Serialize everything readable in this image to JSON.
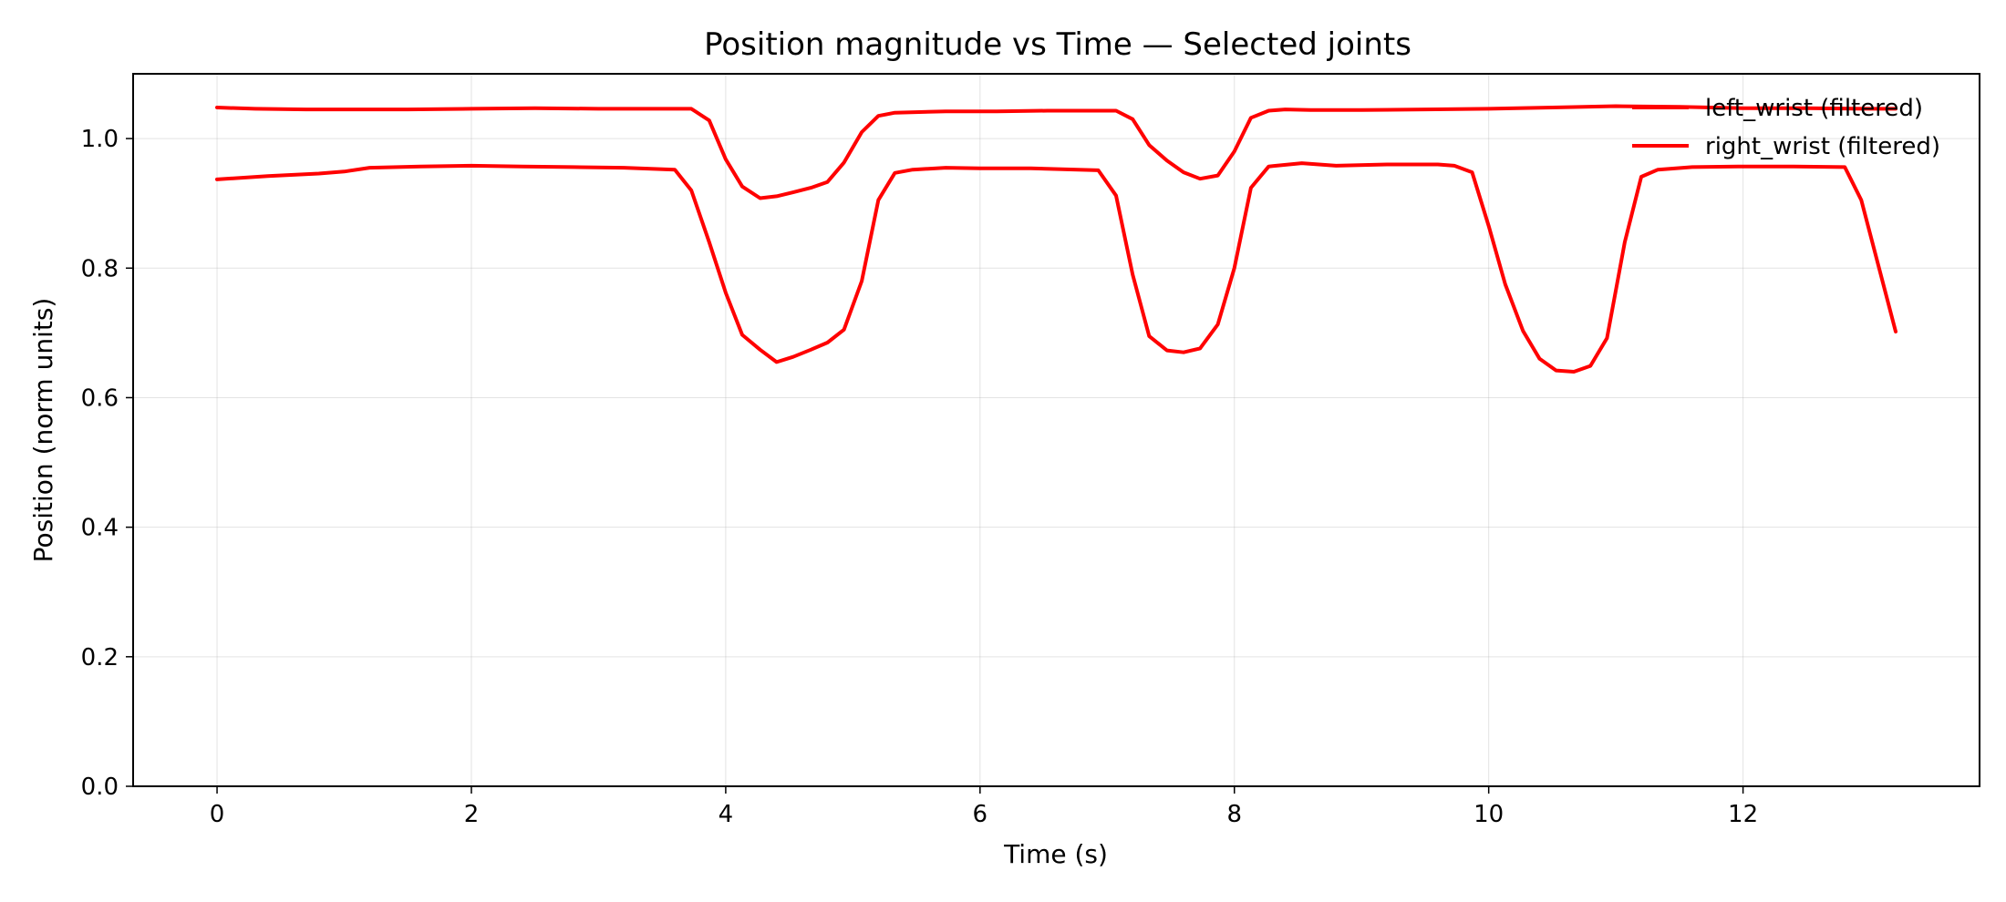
{
  "chart_data": {
    "type": "line",
    "title": "Position magnitude vs Time — Selected joints",
    "xlabel": "Time (s)",
    "ylabel": "Position (norm units)",
    "xlim": [
      -0.66,
      13.86
    ],
    "ylim": [
      0.0,
      1.1
    ],
    "xticks": [
      0,
      2,
      4,
      6,
      8,
      10,
      12
    ],
    "yticks": [
      0.0,
      0.2,
      0.4,
      0.6,
      0.8,
      1.0
    ],
    "xtick_labels": [
      "0",
      "2",
      "4",
      "6",
      "8",
      "10",
      "12"
    ],
    "ytick_labels": [
      "0.0",
      "0.2",
      "0.4",
      "0.6",
      "0.8",
      "1.0"
    ],
    "grid": true,
    "legend": "top-right",
    "series": [
      {
        "name": "left_wrist (filtered)",
        "color": "#ff0000",
        "x": [
          0,
          0.3,
          0.7,
          1.2,
          1.5,
          2.0,
          2.5,
          3.0,
          3.5,
          3.73,
          3.87,
          4.0,
          4.13,
          4.27,
          4.4,
          4.53,
          4.67,
          4.8,
          4.93,
          5.07,
          5.2,
          5.33,
          5.73,
          6.13,
          6.53,
          7.07,
          7.2,
          7.33,
          7.47,
          7.6,
          7.73,
          7.87,
          8.0,
          8.13,
          8.27,
          8.4,
          8.6,
          9.0,
          9.5,
          10.0,
          10.5,
          11.0,
          11.5,
          12.0,
          12.5,
          13.0,
          13.2
        ],
        "values": [
          1.048,
          1.046,
          1.045,
          1.045,
          1.045,
          1.046,
          1.047,
          1.046,
          1.046,
          1.046,
          1.028,
          0.968,
          0.926,
          0.908,
          0.911,
          0.917,
          0.924,
          0.933,
          0.963,
          1.01,
          1.035,
          1.04,
          1.042,
          1.042,
          1.043,
          1.043,
          1.03,
          0.99,
          0.966,
          0.948,
          0.938,
          0.943,
          0.98,
          1.032,
          1.043,
          1.045,
          1.044,
          1.044,
          1.045,
          1.046,
          1.048,
          1.05,
          1.049,
          1.047,
          1.047,
          1.046,
          1.046
        ]
      },
      {
        "name": "right_wrist (filtered)",
        "color": "#ff0000",
        "x": [
          0,
          0.4,
          0.8,
          1.0,
          1.2,
          1.6,
          2.0,
          2.4,
          2.8,
          3.2,
          3.6,
          3.73,
          3.87,
          4.0,
          4.13,
          4.27,
          4.4,
          4.53,
          4.67,
          4.8,
          4.93,
          5.07,
          5.2,
          5.33,
          5.47,
          5.73,
          6.0,
          6.4,
          6.93,
          7.07,
          7.2,
          7.33,
          7.47,
          7.6,
          7.73,
          7.87,
          8.0,
          8.13,
          8.27,
          8.53,
          8.8,
          9.2,
          9.6,
          9.73,
          9.87,
          10.0,
          10.13,
          10.27,
          10.4,
          10.53,
          10.67,
          10.8,
          10.93,
          11.07,
          11.2,
          11.33,
          11.6,
          12.0,
          12.4,
          12.8,
          12.93,
          13.07,
          13.2
        ],
        "values": [
          0.937,
          0.942,
          0.946,
          0.949,
          0.955,
          0.957,
          0.958,
          0.957,
          0.956,
          0.955,
          0.952,
          0.92,
          0.84,
          0.762,
          0.697,
          0.674,
          0.655,
          0.663,
          0.674,
          0.685,
          0.705,
          0.78,
          0.905,
          0.947,
          0.952,
          0.955,
          0.954,
          0.954,
          0.951,
          0.912,
          0.79,
          0.695,
          0.673,
          0.67,
          0.676,
          0.713,
          0.8,
          0.924,
          0.957,
          0.962,
          0.958,
          0.96,
          0.96,
          0.958,
          0.948,
          0.865,
          0.775,
          0.703,
          0.66,
          0.642,
          0.64,
          0.649,
          0.692,
          0.84,
          0.941,
          0.952,
          0.956,
          0.957,
          0.957,
          0.956,
          0.905,
          0.8,
          0.702
        ]
      }
    ]
  }
}
